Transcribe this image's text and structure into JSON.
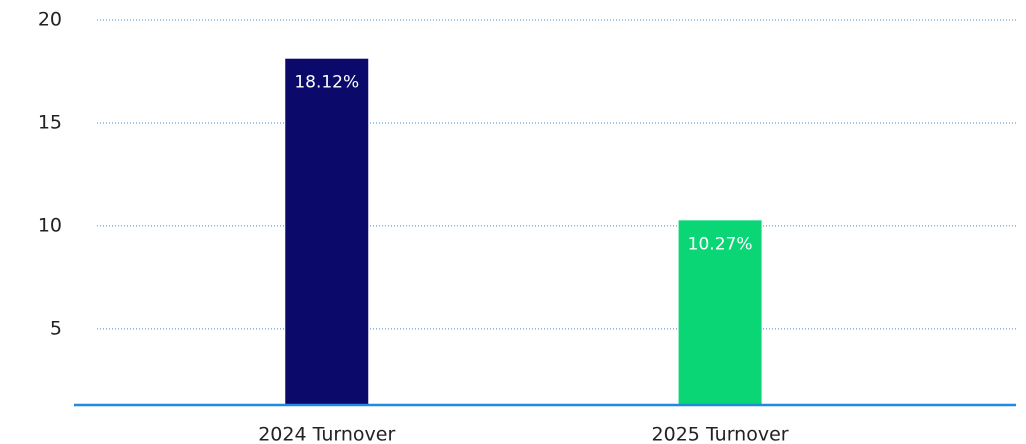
{
  "chart_data": {
    "type": "bar",
    "categories": [
      "2024 Turnover",
      "2025 Turnover"
    ],
    "series": [
      {
        "values": [
          18.12,
          10.27
        ],
        "value_labels": [
          "18.12%",
          "10.27%"
        ],
        "colors": [
          "#0b0a6b",
          "#0ad675"
        ]
      }
    ],
    "ylim": [
      1.3,
      20
    ],
    "yticks": [
      5,
      10,
      15,
      20
    ],
    "grid": true
  }
}
